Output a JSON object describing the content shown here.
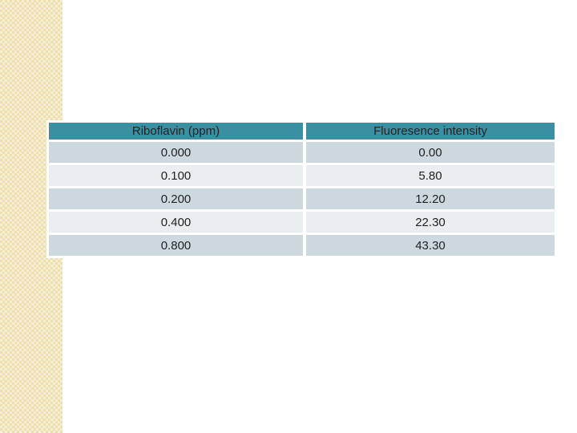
{
  "slide": {
    "background_color": "#ffffff",
    "accent_band": {
      "base_color": "#efe0b2",
      "check_color": "#f7eed6"
    }
  },
  "table": {
    "columns": [
      "Riboflavin (ppm)",
      "Fluoresence intensity"
    ],
    "rows": [
      [
        "0.000",
        "0.00"
      ],
      [
        "0.100",
        "5.80"
      ],
      [
        "0.200",
        "12.20"
      ],
      [
        "0.400",
        "22.30"
      ],
      [
        "0.800",
        "43.30"
      ]
    ],
    "colors": {
      "header_bg": "#3a8fa2",
      "row_dark_bg": "#cdd9df",
      "row_light_bg": "#e9eef1",
      "text": "#222222"
    }
  },
  "chart_data": {
    "type": "table",
    "title": "",
    "columns": [
      "Riboflavin (ppm)",
      "Fluoresence intensity"
    ],
    "rows": [
      [
        0.0,
        0.0
      ],
      [
        0.1,
        5.8
      ],
      [
        0.2,
        12.2
      ],
      [
        0.4,
        22.3
      ],
      [
        0.8,
        43.3
      ]
    ]
  }
}
